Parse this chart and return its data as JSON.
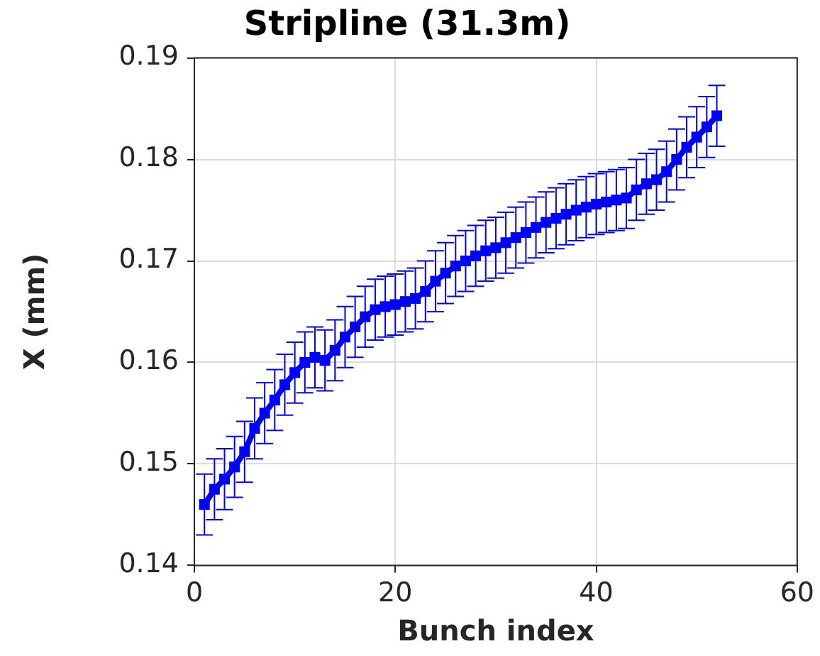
{
  "chart_data": {
    "type": "line",
    "title": "Stripline (31.3m)",
    "xlabel": "Bunch index",
    "ylabel": "X (mm)",
    "x": [
      1,
      2,
      3,
      4,
      5,
      6,
      7,
      8,
      9,
      10,
      11,
      12,
      13,
      14,
      15,
      16,
      17,
      18,
      19,
      20,
      21,
      22,
      23,
      24,
      25,
      26,
      27,
      28,
      29,
      30,
      31,
      32,
      33,
      34,
      35,
      36,
      37,
      38,
      39,
      40,
      41,
      42,
      43,
      44,
      45,
      46,
      47,
      48,
      49,
      50,
      51,
      52
    ],
    "series": [
      {
        "color": "#0000ff",
        "values": [
          0.146,
          0.1475,
          0.1485,
          0.1497,
          0.1512,
          0.1535,
          0.155,
          0.1563,
          0.1578,
          0.159,
          0.16,
          0.1605,
          0.1602,
          0.1612,
          0.1625,
          0.1635,
          0.1645,
          0.1652,
          0.1655,
          0.1657,
          0.166,
          0.1663,
          0.167,
          0.168,
          0.1688,
          0.1695,
          0.17,
          0.1705,
          0.171,
          0.1713,
          0.1718,
          0.1723,
          0.1728,
          0.1733,
          0.1738,
          0.1742,
          0.1746,
          0.175,
          0.1753,
          0.1756,
          0.1758,
          0.176,
          0.1762,
          0.177,
          0.1776,
          0.178,
          0.1788,
          0.18,
          0.1812,
          0.1822,
          0.1832,
          0.1843
        ],
        "errors": [
          0.003,
          0.003,
          0.003,
          0.003,
          0.003,
          0.003,
          0.003,
          0.003,
          0.003,
          0.003,
          0.003,
          0.003,
          0.003,
          0.003,
          0.003,
          0.003,
          0.003,
          0.003,
          0.003,
          0.003,
          0.003,
          0.003,
          0.003,
          0.003,
          0.003,
          0.003,
          0.003,
          0.003,
          0.003,
          0.003,
          0.003,
          0.003,
          0.003,
          0.003,
          0.003,
          0.003,
          0.003,
          0.003,
          0.003,
          0.003,
          0.003,
          0.003,
          0.003,
          0.003,
          0.003,
          0.003,
          0.003,
          0.003,
          0.003,
          0.003,
          0.003,
          0.003
        ]
      }
    ],
    "xlim": [
      0,
      60
    ],
    "xticks": [
      0,
      20,
      40,
      60
    ],
    "ylim": [
      0.14,
      0.19
    ],
    "yticks": [
      0.14,
      0.15,
      0.16,
      0.17,
      0.18,
      0.19
    ],
    "grid": true,
    "marker": "square",
    "line_style": "solid"
  }
}
